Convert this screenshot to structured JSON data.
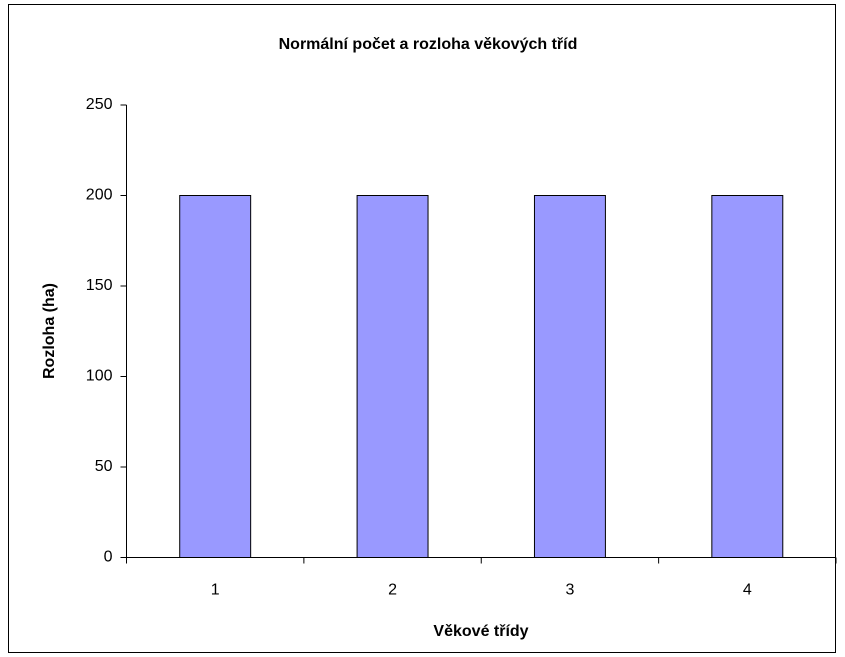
{
  "chart_data": {
    "type": "bar",
    "title": "Normální počet a rozloha věkových tříd",
    "x_label": "Věkové třídy",
    "y_label": "Rozloha (ha)",
    "categories": [
      "1",
      "2",
      "3",
      "4"
    ],
    "values": [
      200,
      200,
      200,
      200
    ],
    "color": "#9999ff",
    "ylim": [
      0,
      250
    ],
    "yticks": [
      0,
      50,
      100,
      150,
      200,
      250
    ],
    "grid": false
  }
}
